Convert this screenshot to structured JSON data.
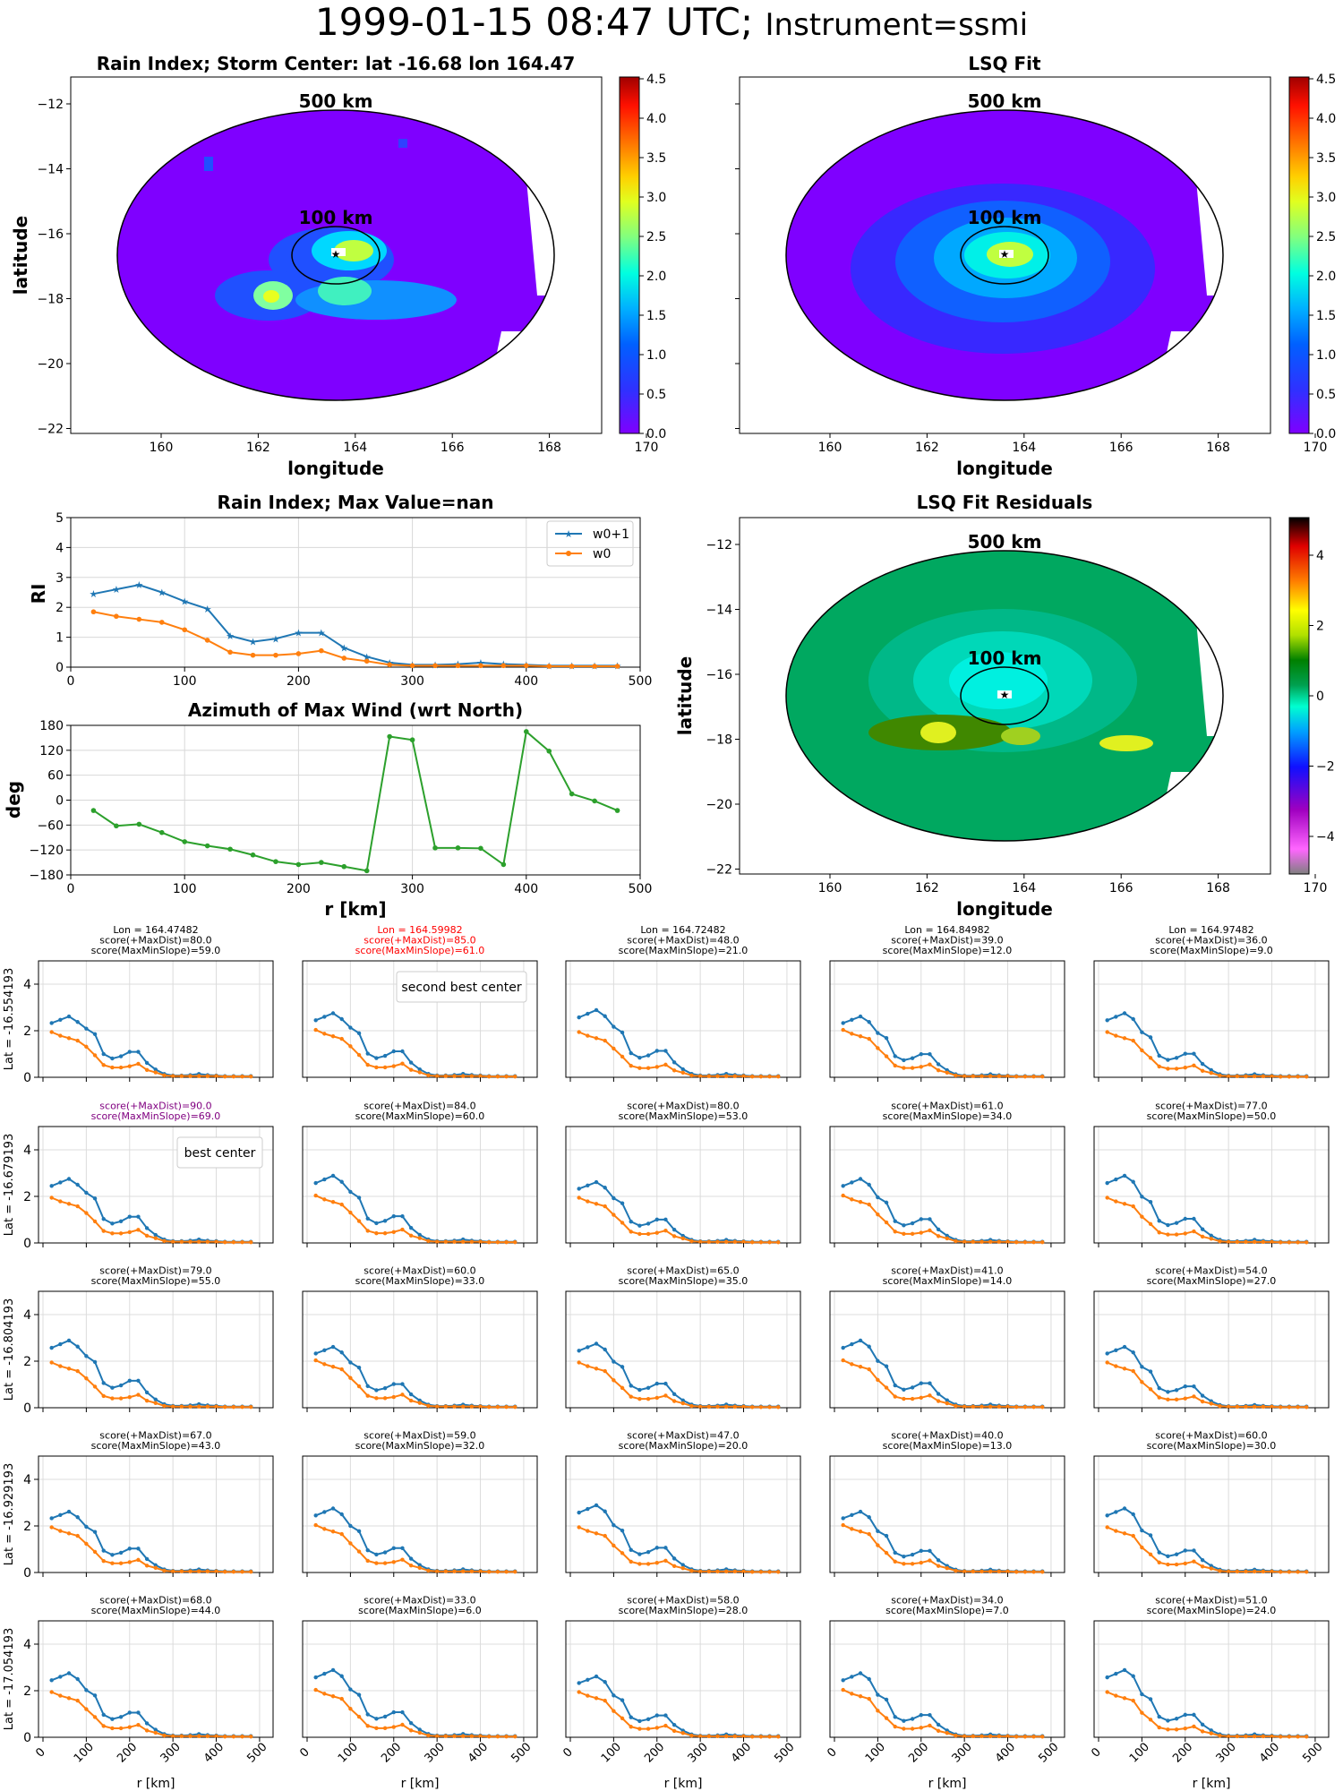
{
  "figure": {
    "title_main": "1999-01-15 08:47 UTC; ",
    "title_sub": "Instrument=ssmi"
  },
  "panels": {
    "rain_map": {
      "title": "Rain Index; Storm Center: lat -16.68 lon 164.47",
      "xlabel": "longitude",
      "ylabel": "latitude",
      "xticks": [
        "160",
        "162",
        "164",
        "166",
        "168",
        "170"
      ],
      "yticks": [
        "−12",
        "−14",
        "−16",
        "−18",
        "−20",
        "−22"
      ],
      "ring_labels": [
        "500 km",
        "100 km"
      ],
      "colorbar_ticks": [
        "0.0",
        "0.5",
        "1.0",
        "1.5",
        "2.0",
        "2.5",
        "3.0",
        "3.5",
        "4.0",
        "4.5"
      ]
    },
    "lsq_map": {
      "title": "LSQ Fit",
      "xlabel": "longitude",
      "xticks": [
        "160",
        "162",
        "164",
        "166",
        "168",
        "170"
      ],
      "ring_labels": [
        "500 km",
        "100 km"
      ],
      "colorbar_ticks": [
        "0.0",
        "0.5",
        "1.0",
        "1.5",
        "2.0",
        "2.5",
        "3.0",
        "3.5",
        "4.0",
        "4.5"
      ]
    },
    "resid_map": {
      "title": "LSQ Fit Residuals",
      "xlabel": "longitude",
      "ylabel": "latitude",
      "xticks": [
        "160",
        "162",
        "164",
        "166",
        "168",
        "170"
      ],
      "yticks": [
        "−12",
        "−14",
        "−16",
        "−18",
        "−20",
        "−22"
      ],
      "ring_labels": [
        "500 km",
        "100 km"
      ],
      "colorbar_ticks": [
        "4",
        "2",
        "0",
        "−2",
        "−4"
      ]
    },
    "grid_xlabel": "r [km]",
    "grid_xticks": [
      "0",
      "100",
      "200",
      "300",
      "400",
      "500"
    ],
    "grid_yticks": [
      "0",
      "2",
      "4"
    ]
  },
  "chart_data": [
    {
      "type": "line",
      "title": "Rain Index; Max Value=nan",
      "xlabel": "",
      "ylabel": "RI",
      "xlim": [
        0,
        500
      ],
      "ylim": [
        0,
        5
      ],
      "xticks": [
        "0",
        "100",
        "200",
        "300",
        "400",
        "500"
      ],
      "yticks": [
        "0",
        "1",
        "2",
        "3",
        "4",
        "5"
      ],
      "legend": "top-right",
      "series": [
        {
          "name": "w0+1",
          "color": "#1f77b4",
          "marker": "star",
          "x": [
            20,
            40,
            60,
            80,
            100,
            120,
            140,
            160,
            180,
            200,
            220,
            240,
            260,
            280,
            300,
            320,
            340,
            360,
            380,
            400,
            420,
            440,
            460,
            480
          ],
          "y": [
            2.45,
            2.6,
            2.75,
            2.5,
            2.2,
            1.95,
            1.05,
            0.85,
            0.95,
            1.15,
            1.15,
            0.65,
            0.35,
            0.15,
            0.08,
            0.08,
            0.1,
            0.15,
            0.1,
            0.08,
            0.05,
            0.05,
            0.05,
            0.05
          ]
        },
        {
          "name": "w0",
          "color": "#ff7f0e",
          "marker": "dot",
          "x": [
            20,
            40,
            60,
            80,
            100,
            120,
            140,
            160,
            180,
            200,
            220,
            240,
            260,
            280,
            300,
            320,
            340,
            360,
            380,
            400,
            420,
            440,
            460,
            480
          ],
          "y": [
            1.85,
            1.7,
            1.6,
            1.5,
            1.25,
            0.9,
            0.5,
            0.4,
            0.4,
            0.45,
            0.55,
            0.3,
            0.2,
            0.08,
            0.05,
            0.05,
            0.05,
            0.05,
            0.05,
            0.05,
            0.03,
            0.03,
            0.03,
            0.03
          ]
        }
      ]
    },
    {
      "type": "line",
      "title": "Azimuth of Max Wind (wrt North)",
      "xlabel": "r [km]",
      "ylabel": "deg",
      "xlim": [
        0,
        500
      ],
      "ylim": [
        -180,
        180
      ],
      "xticks": [
        "0",
        "100",
        "200",
        "300",
        "400",
        "500"
      ],
      "yticks": [
        "180",
        "120",
        "60",
        "0",
        "−60",
        "−120",
        "−180"
      ],
      "series": [
        {
          "color": "#2ca02c",
          "x": [
            20,
            40,
            60,
            80,
            100,
            120,
            140,
            160,
            180,
            200,
            220,
            240,
            260,
            280,
            300,
            320,
            340,
            360,
            380,
            400,
            420,
            440,
            460,
            480
          ],
          "y": [
            -25,
            -62,
            -58,
            -78,
            -100,
            -110,
            -118,
            -132,
            -148,
            -155,
            -150,
            -160,
            -170,
            153,
            145,
            -115,
            -115,
            -116,
            -155,
            165,
            118,
            15,
            -2,
            -25
          ]
        }
      ]
    },
    {
      "type": "line",
      "grid": "5x5 candidate centers",
      "rows": [
        {
          "lat_label": "Lat = -16.554193",
          "cells": [
            {
              "title": [
                "Lon = 164.47482",
                "score(+MaxDist)=80.0",
                "score(MaxMinSlope)=59.0"
              ],
              "title_color": "#000000"
            },
            {
              "title": [
                "Lon = 164.59982",
                "score(+MaxDist)=85.0",
                "score(MaxMinSlope)=61.0"
              ],
              "title_color": "#ff0000",
              "legend": "second best center"
            },
            {
              "title": [
                "Lon = 164.72482",
                "score(+MaxDist)=48.0",
                "score(MaxMinSlope)=21.0"
              ],
              "title_color": "#000000"
            },
            {
              "title": [
                "Lon = 164.84982",
                "score(+MaxDist)=39.0",
                "score(MaxMinSlope)=12.0"
              ],
              "title_color": "#000000"
            },
            {
              "title": [
                "Lon = 164.97482",
                "score(+MaxDist)=36.0",
                "score(MaxMinSlope)=9.0"
              ],
              "title_color": "#000000"
            }
          ]
        },
        {
          "lat_label": "Lat = -16.679193",
          "cells": [
            {
              "title": [
                "score(+MaxDist)=90.0",
                "score(MaxMinSlope)=69.0"
              ],
              "title_color": "#800080",
              "legend": "best center"
            },
            {
              "title": [
                "score(+MaxDist)=84.0",
                "score(MaxMinSlope)=60.0"
              ],
              "title_color": "#000000"
            },
            {
              "title": [
                "score(+MaxDist)=80.0",
                "score(MaxMinSlope)=53.0"
              ],
              "title_color": "#000000"
            },
            {
              "title": [
                "score(+MaxDist)=61.0",
                "score(MaxMinSlope)=34.0"
              ],
              "title_color": "#000000"
            },
            {
              "title": [
                "score(+MaxDist)=77.0",
                "score(MaxMinSlope)=50.0"
              ],
              "title_color": "#000000"
            }
          ]
        },
        {
          "lat_label": "Lat = -16.804193",
          "cells": [
            {
              "title": [
                "score(+MaxDist)=79.0",
                "score(MaxMinSlope)=55.0"
              ],
              "title_color": "#000000"
            },
            {
              "title": [
                "score(+MaxDist)=60.0",
                "score(MaxMinSlope)=33.0"
              ],
              "title_color": "#000000"
            },
            {
              "title": [
                "score(+MaxDist)=65.0",
                "score(MaxMinSlope)=35.0"
              ],
              "title_color": "#000000"
            },
            {
              "title": [
                "score(+MaxDist)=41.0",
                "score(MaxMinSlope)=14.0"
              ],
              "title_color": "#000000"
            },
            {
              "title": [
                "score(+MaxDist)=54.0",
                "score(MaxMinSlope)=27.0"
              ],
              "title_color": "#000000"
            }
          ]
        },
        {
          "lat_label": "Lat = -16.929193",
          "cells": [
            {
              "title": [
                "score(+MaxDist)=67.0",
                "score(MaxMinSlope)=43.0"
              ],
              "title_color": "#000000"
            },
            {
              "title": [
                "score(+MaxDist)=59.0",
                "score(MaxMinSlope)=32.0"
              ],
              "title_color": "#000000"
            },
            {
              "title": [
                "score(+MaxDist)=47.0",
                "score(MaxMinSlope)=20.0"
              ],
              "title_color": "#000000"
            },
            {
              "title": [
                "score(+MaxDist)=40.0",
                "score(MaxMinSlope)=13.0"
              ],
              "title_color": "#000000"
            },
            {
              "title": [
                "score(+MaxDist)=60.0",
                "score(MaxMinSlope)=30.0"
              ],
              "title_color": "#000000"
            }
          ]
        },
        {
          "lat_label": "Lat = -17.054193",
          "cells": [
            {
              "title": [
                "score(+MaxDist)=68.0",
                "score(MaxMinSlope)=44.0"
              ],
              "title_color": "#000000"
            },
            {
              "title": [
                "score(+MaxDist)=33.0",
                "score(MaxMinSlope)=6.0"
              ],
              "title_color": "#000000"
            },
            {
              "title": [
                "score(+MaxDist)=58.0",
                "score(MaxMinSlope)=28.0"
              ],
              "title_color": "#000000"
            },
            {
              "title": [
                "score(+MaxDist)=34.0",
                "score(MaxMinSlope)=7.0"
              ],
              "title_color": "#000000"
            },
            {
              "title": [
                "score(+MaxDist)=51.0",
                "score(MaxMinSlope)=24.0"
              ],
              "title_color": "#000000"
            }
          ]
        }
      ]
    }
  ]
}
